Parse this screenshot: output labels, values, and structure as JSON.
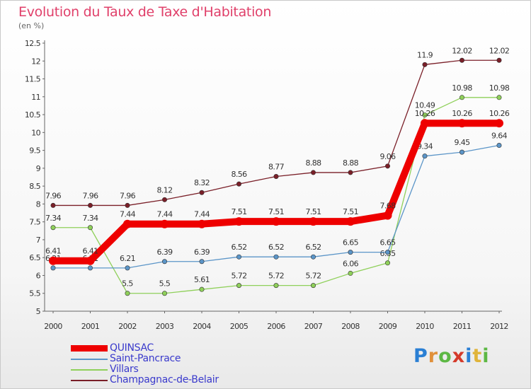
{
  "title": "Evolution du Taux de Taxe d'Habitation",
  "unit": "(en %)",
  "logo": "Proxiti",
  "chart_data": {
    "type": "line",
    "x": [
      "2000",
      "2001",
      "2002",
      "2003",
      "2004",
      "2005",
      "2006",
      "2007",
      "2008",
      "2009",
      "2010",
      "2011",
      "2012"
    ],
    "ylim": [
      5,
      12.5
    ],
    "yticks": [
      "5",
      "5.5",
      "6",
      "6.5",
      "7",
      "7.5",
      "8",
      "8.5",
      "9",
      "9.5",
      "10",
      "10.5",
      "11",
      "11.5",
      "12",
      "12.5"
    ],
    "grid": false,
    "legend_position": "bottom-left",
    "series": [
      {
        "name": "Champagnac-de-Belair",
        "color": "#7a1f28",
        "values": [
          7.96,
          7.96,
          7.96,
          8.12,
          8.32,
          8.56,
          8.77,
          8.88,
          8.88,
          9.06,
          11.9,
          12.02,
          12.02
        ],
        "labels": [
          "7.96",
          "7.96",
          "7.96",
          "8.12",
          "8.32",
          "8.56",
          "8.77",
          "8.88",
          "8.88",
          "9.06",
          "11.9",
          "12.02",
          "12.02"
        ]
      },
      {
        "name": "Villars",
        "color": "#8fd05a",
        "values": [
          7.34,
          7.34,
          5.5,
          5.5,
          5.61,
          5.72,
          5.72,
          5.72,
          6.06,
          6.35,
          10.49,
          10.98,
          10.98
        ],
        "labels": [
          "7.34",
          "7.34",
          "5.5",
          "5.5",
          "5.61",
          "5.72",
          "5.72",
          "5.72",
          "6.06",
          "6.35",
          "10.49",
          "10.98",
          "10.98"
        ]
      },
      {
        "name": "Saint-Pancrace",
        "color": "#5b95c8",
        "values": [
          6.21,
          6.21,
          6.21,
          6.39,
          6.39,
          6.52,
          6.52,
          6.52,
          6.65,
          6.65,
          9.34,
          9.45,
          9.64
        ],
        "labels": [
          "6.21",
          "6.21",
          "6.21",
          "6.39",
          "6.39",
          "6.52",
          "6.52",
          "6.52",
          "6.65",
          "6.65",
          "9.34",
          "9.45",
          "9.64"
        ]
      },
      {
        "name": "QUINSAC",
        "color": "#ee0000",
        "values": [
          6.41,
          6.41,
          7.44,
          7.44,
          7.44,
          7.51,
          7.51,
          7.51,
          7.51,
          7.68,
          10.26,
          10.26,
          10.26
        ],
        "labels": [
          "6.41",
          "6.41",
          "7.44",
          "7.44",
          "7.44",
          "7.51",
          "7.51",
          "7.51",
          "7.51",
          "7.68",
          "10.26",
          "10.26",
          "10.26"
        ]
      }
    ],
    "legend": [
      "QUINSAC",
      "Saint-Pancrace",
      "Villars",
      "Champagnac-de-Belair"
    ]
  }
}
